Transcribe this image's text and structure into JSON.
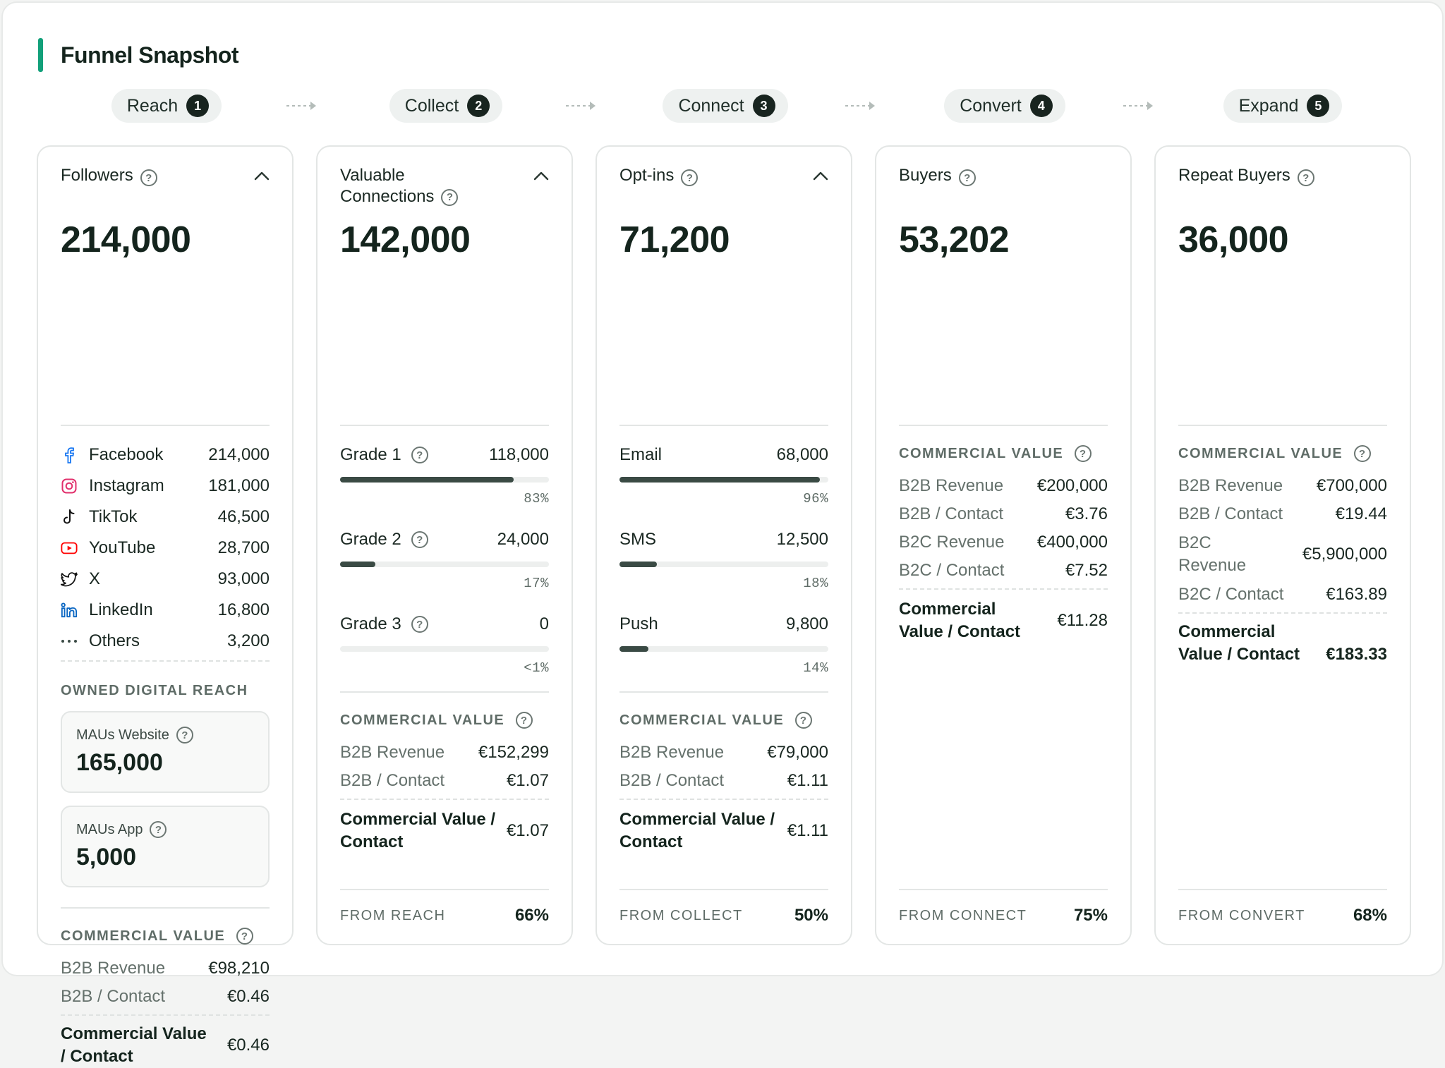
{
  "title": "Funnel Snapshot",
  "stages": [
    {
      "label": "Reach",
      "num": "1"
    },
    {
      "label": "Collect",
      "num": "2"
    },
    {
      "label": "Connect",
      "num": "3"
    },
    {
      "label": "Convert",
      "num": "4"
    },
    {
      "label": "Expand",
      "num": "5"
    }
  ],
  "reach": {
    "label": "Followers",
    "total": "214,000",
    "channels": [
      {
        "name": "Facebook",
        "value": "214,000",
        "icon": "facebook-icon"
      },
      {
        "name": "Instagram",
        "value": "181,000",
        "icon": "instagram-icon"
      },
      {
        "name": "TikTok",
        "value": "46,500",
        "icon": "tiktok-icon"
      },
      {
        "name": "YouTube",
        "value": "28,700",
        "icon": "youtube-icon"
      },
      {
        "name": "X",
        "value": "93,000",
        "icon": "x-icon"
      },
      {
        "name": "LinkedIn",
        "value": "16,800",
        "icon": "linkedin-icon"
      },
      {
        "name": "Others",
        "value": "3,200",
        "icon": "more-icon"
      }
    ],
    "owned_caption": "OWNED DIGITAL REACH",
    "mau_website_label": "MAUs Website",
    "mau_website_value": "165,000",
    "mau_app_label": "MAUs App",
    "mau_app_value": "5,000",
    "cv_caption": "COMMERCIAL VALUE",
    "b2b_revenue_label": "B2B Revenue",
    "b2b_revenue_value": "€98,210",
    "b2b_contact_label": "B2B / Contact",
    "b2b_contact_value": "€0.46",
    "total_label": "Commercial Value / Contact",
    "total_value": "€0.46"
  },
  "collect": {
    "label": "Valuable Connections",
    "total": "142,000",
    "grades": [
      {
        "name": "Grade 1",
        "value": "118,000",
        "pct": "83%",
        "fill": 0.83
      },
      {
        "name": "Grade 2",
        "value": "24,000",
        "pct": "17%",
        "fill": 0.17
      },
      {
        "name": "Grade 3",
        "value": "0",
        "pct": "<1%",
        "fill": 0
      }
    ],
    "cv_caption": "COMMERCIAL VALUE",
    "b2b_revenue_label": "B2B Revenue",
    "b2b_revenue_value": "€152,299",
    "b2b_contact_label": "B2B / Contact",
    "b2b_contact_value": "€1.07",
    "total_label": "Commercial Value / Contact",
    "total_value": "€1.07",
    "footer_label": "FROM REACH",
    "footer_value": "66%"
  },
  "connect": {
    "label": "Opt-ins",
    "total": "71,200",
    "channels": [
      {
        "name": "Email",
        "value": "68,000",
        "pct": "96%",
        "fill": 0.96
      },
      {
        "name": "SMS",
        "value": "12,500",
        "pct": "18%",
        "fill": 0.18
      },
      {
        "name": "Push",
        "value": "9,800",
        "pct": "14%",
        "fill": 0.14
      }
    ],
    "cv_caption": "COMMERCIAL VALUE",
    "b2b_revenue_label": "B2B Revenue",
    "b2b_revenue_value": "€79,000",
    "b2b_contact_label": "B2B / Contact",
    "b2b_contact_value": "€1.11",
    "total_label": "Commercial Value / Contact",
    "total_value": "€1.11",
    "footer_label": "FROM COLLECT",
    "footer_value": "50%"
  },
  "convert": {
    "label": "Buyers",
    "total": "53,202",
    "cv_caption": "COMMERCIAL VALUE",
    "b2b_revenue_label": "B2B Revenue",
    "b2b_revenue_value": "€200,000",
    "b2b_contact_label": "B2B / Contact",
    "b2b_contact_value": "€3.76",
    "b2c_revenue_label": "B2C Revenue",
    "b2c_revenue_value": "€400,000",
    "b2c_contact_label": "B2C / Contact",
    "b2c_contact_value": "€7.52",
    "total_label": "Commercial Value / Contact",
    "total_value": "€11.28",
    "footer_label": "FROM CONNECT",
    "footer_value": "75%"
  },
  "expand": {
    "label": "Repeat Buyers",
    "total": "36,000",
    "cv_caption": "COMMERCIAL VALUE",
    "b2b_revenue_label": "B2B Revenue",
    "b2b_revenue_value": "€700,000",
    "b2b_contact_label": "B2B / Contact",
    "b2b_contact_value": "€19.44",
    "b2c_revenue_label": "B2C Revenue",
    "b2c_revenue_value": "€5,900,000",
    "b2c_contact_label": "B2C / Contact",
    "b2c_contact_value": "€163.89",
    "total_label": "Commercial Value / Contact",
    "total_value": "€183.33",
    "footer_label": "FROM CONVERT",
    "footer_value": "68%"
  },
  "colors": {
    "accent": "#12a07a",
    "bar_fill": "#3a4a44",
    "pill_bg": "#eef1f0"
  }
}
